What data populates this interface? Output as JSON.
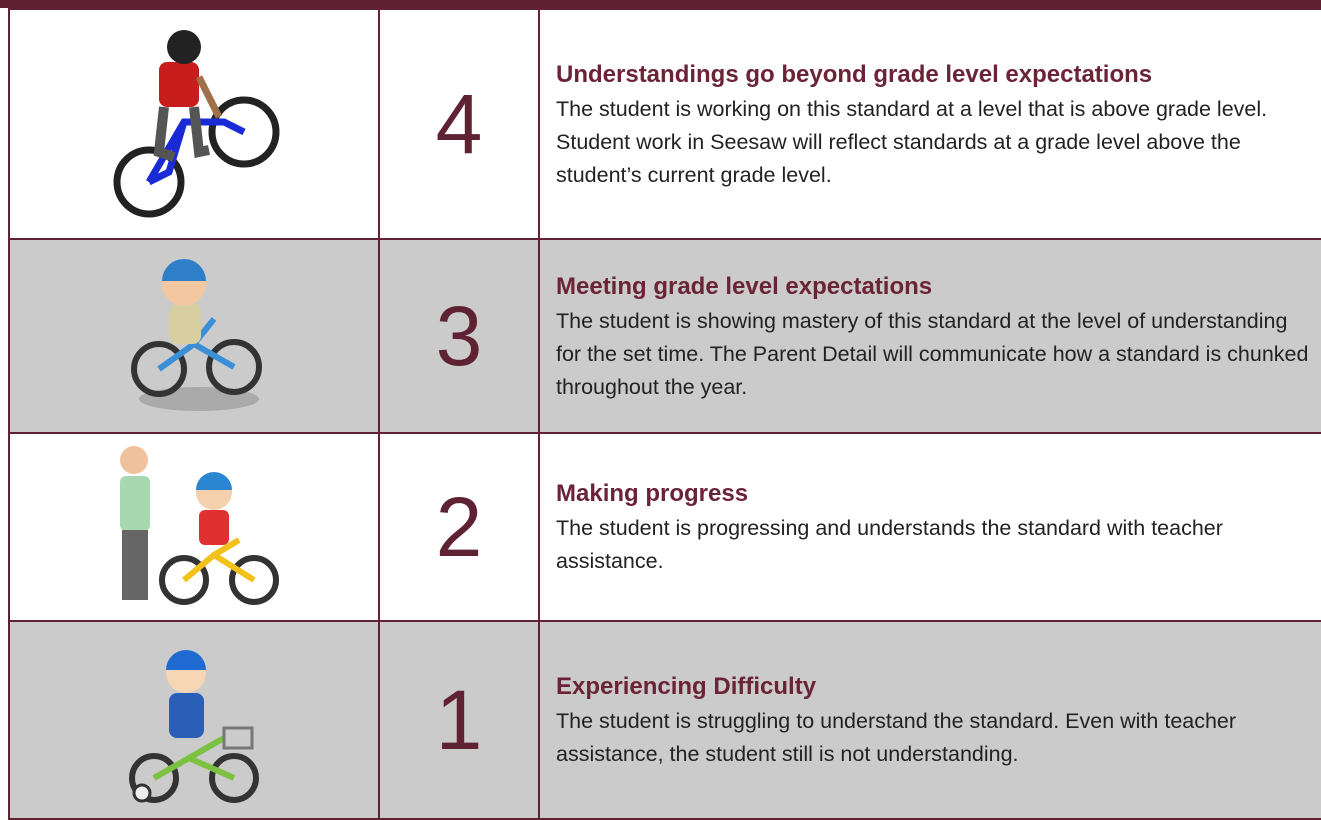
{
  "rows": [
    {
      "score": "4",
      "title": "Understandings go beyond grade level expectations",
      "description": "The student is working on this standard at a level that is above grade level. Student work in Seesaw will reflect standards at a grade level above the student’s current grade level."
    },
    {
      "score": "3",
      "title": "Meeting grade level expectations",
      "description": "The student is showing mastery of this standard at the level of understanding for the set time. The Parent Detail will communicate how a standard is chunked throughout the year."
    },
    {
      "score": "2",
      "title": "Making progress",
      "description": "The student is progressing and understands the standard with teacher assistance."
    },
    {
      "score": "1",
      "title": "Experiencing Difficulty",
      "description": "The student is struggling to understand the standard. Even with teacher assistance, the student still is not understanding."
    }
  ]
}
